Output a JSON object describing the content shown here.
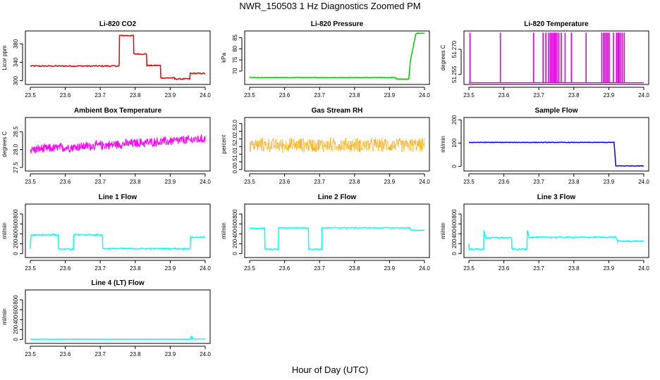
{
  "title": "NWR_150503  1 Hz Diagnostics Zoomed PM",
  "xlabel": "Hour of Day (UTC)",
  "chart_data": [
    {
      "type": "line",
      "name": "li820-co2",
      "title": "Li-820 CO2",
      "ylabel": "Licor ppm",
      "color": "#ee0000",
      "xlim": [
        23.5,
        24.0
      ],
      "ylim": [
        292,
        408
      ],
      "yticks": [
        "300",
        "340",
        "380"
      ],
      "ytick_values": [
        300,
        340,
        380
      ],
      "x": [
        23.5,
        23.754,
        23.755,
        23.795,
        23.796,
        23.832,
        23.833,
        23.872,
        23.873,
        23.912,
        23.913,
        23.956,
        23.957,
        24.0
      ],
      "y": [
        332,
        332,
        398,
        398,
        358,
        358,
        333,
        333,
        306,
        306,
        304,
        304,
        316,
        316
      ],
      "noise": 1.2
    },
    {
      "type": "line",
      "name": "li820-pressure",
      "title": "Li-820 Pressure",
      "ylabel": "kPa",
      "color": "#00cc00",
      "xlim": [
        23.5,
        24.0
      ],
      "ylim": [
        64,
        88
      ],
      "yticks": [
        "70",
        "75",
        "80",
        "85"
      ],
      "ytick_values": [
        70,
        75,
        80,
        85
      ],
      "x": [
        23.5,
        23.918,
        23.92,
        23.955,
        23.96,
        23.975,
        23.98,
        24.0
      ],
      "y": [
        67.1,
        67.1,
        66.4,
        66.4,
        75,
        86.6,
        87,
        87
      ],
      "noise": 0.1
    },
    {
      "type": "spikes",
      "name": "li820-temperature",
      "title": "Li-820 Temperature",
      "ylabel": "degrees C",
      "color": "#dd00dd",
      "xlim": [
        23.5,
        24.0
      ],
      "ylim": [
        51.249,
        51.281
      ],
      "yticks": [
        "51.255",
        "51.270"
      ],
      "ytick_values": [
        51.255,
        51.27
      ],
      "baseline": 51.25,
      "peak": 51.28,
      "spikes": [
        23.503,
        23.59,
        23.685,
        23.712,
        23.72,
        23.728,
        23.733,
        23.737,
        23.741,
        23.745,
        23.748,
        23.752,
        23.757,
        23.764,
        23.775,
        23.793,
        23.835,
        23.88,
        23.885,
        23.889,
        23.893,
        23.897,
        23.901,
        23.913,
        23.922,
        23.926,
        23.929,
        23.933,
        23.938,
        23.944
      ]
    },
    {
      "type": "line",
      "name": "ambient-box-temperature",
      "title": "Ambient Box Temperature",
      "ylabel": "degrees C",
      "color": "#ff00ff",
      "xlim": [
        23.5,
        24.0
      ],
      "ylim": [
        27.4,
        28.9
      ],
      "yticks": [
        "27.5",
        "28.0",
        "28.5"
      ],
      "ytick_values": [
        27.5,
        28.0,
        28.5
      ],
      "trend": [
        [
          23.5,
          28.0
        ],
        [
          24.0,
          28.3
        ]
      ],
      "noise": 0.13
    },
    {
      "type": "line",
      "name": "gas-stream-rh",
      "title": "Gas Stream RH",
      "ylabel": "percent",
      "color": "#ffa500",
      "xlim": [
        23.5,
        24.0
      ],
      "ylim": [
        -0.1,
        3.4
      ],
      "yticks": [
        "0.0",
        "0.5",
        "1.0",
        "1.5",
        "2.0",
        "2.5",
        "3.0"
      ],
      "ytick_values": [
        0,
        0.5,
        1,
        1.5,
        2,
        2.5,
        3
      ],
      "trend": [
        [
          23.5,
          1.6
        ],
        [
          24.0,
          1.6
        ]
      ],
      "noise": 0.45,
      "dotted": true
    },
    {
      "type": "line",
      "name": "sample-flow",
      "title": "Sample Flow",
      "ylabel": "ml/min",
      "color": "#0000ff",
      "xlim": [
        23.5,
        24.0
      ],
      "ylim": [
        -20,
        210
      ],
      "yticks": [
        "0",
        "100",
        "200"
      ],
      "ytick_values": [
        0,
        100,
        200
      ],
      "x": [
        23.5,
        23.915,
        23.92,
        24.0
      ],
      "y": [
        103,
        103,
        2,
        2
      ],
      "noise": 1.2
    },
    {
      "type": "line",
      "name": "line-1-flow",
      "title": "Line 1 Flow",
      "ylabel": "ml/min",
      "color": "#00ffff",
      "xlim": [
        23.5,
        24.0
      ],
      "ylim": [
        -80,
        1000
      ],
      "yticks": [
        "0",
        "200",
        "400",
        "600",
        "800"
      ],
      "ytick_values": [
        0,
        200,
        400,
        600,
        800
      ],
      "x": [
        23.5,
        23.502,
        23.58,
        23.581,
        23.623,
        23.624,
        23.706,
        23.707,
        23.957,
        23.958,
        24.0
      ],
      "y": [
        100,
        380,
        380,
        90,
        90,
        380,
        380,
        100,
        100,
        330,
        330
      ],
      "noise": 12
    },
    {
      "type": "line",
      "name": "line-2-flow",
      "title": "Line 2 Flow",
      "ylabel": "ml/min",
      "color": "#00ffff",
      "xlim": [
        23.5,
        24.0
      ],
      "ylim": [
        -80,
        1000
      ],
      "yticks": [
        "0",
        "200",
        "400",
        "600",
        "800"
      ],
      "ytick_values": [
        0,
        200,
        400,
        600,
        800
      ],
      "x": [
        23.5,
        23.543,
        23.544,
        23.582,
        23.583,
        23.668,
        23.669,
        23.706,
        23.707,
        23.958,
        23.96,
        24.0
      ],
      "y": [
        510,
        510,
        90,
        90,
        520,
        520,
        90,
        90,
        520,
        520,
        470,
        470
      ],
      "noise": 8
    },
    {
      "type": "line",
      "name": "line-3-flow",
      "title": "Line 3 Flow",
      "ylabel": "ml/min",
      "color": "#00ffff",
      "xlim": [
        23.5,
        24.0
      ],
      "ylim": [
        -80,
        1000
      ],
      "yticks": [
        "0",
        "200",
        "400",
        "600",
        "800"
      ],
      "ytick_values": [
        0,
        200,
        400,
        600,
        800
      ],
      "x": [
        23.5,
        23.501,
        23.542,
        23.543,
        23.548,
        23.622,
        23.623,
        23.666,
        23.667,
        23.672,
        23.92,
        23.925,
        24.0
      ],
      "y": [
        200,
        90,
        90,
        470,
        320,
        320,
        90,
        90,
        470,
        330,
        330,
        250,
        250
      ],
      "noise": 12
    },
    {
      "type": "line",
      "name": "line-4-lt-flow",
      "title": "Line 4 (LT) Flow",
      "ylabel": "ml/min",
      "color": "#00ffff",
      "xlim": [
        23.5,
        24.0
      ],
      "ylim": [
        -80,
        1000
      ],
      "yticks": [
        "0",
        "200",
        "400",
        "600",
        "800"
      ],
      "ytick_values": [
        0,
        200,
        400,
        600,
        800
      ],
      "x": [
        23.5,
        23.958,
        23.959,
        23.962,
        23.963,
        24.0
      ],
      "y": [
        5,
        5,
        60,
        60,
        10,
        10
      ],
      "noise": 2
    }
  ],
  "xticks": [
    "23.5",
    "23.6",
    "23.7",
    "23.8",
    "23.9",
    "24.0"
  ],
  "xtick_values": [
    23.5,
    23.6,
    23.7,
    23.8,
    23.9,
    24.0
  ]
}
